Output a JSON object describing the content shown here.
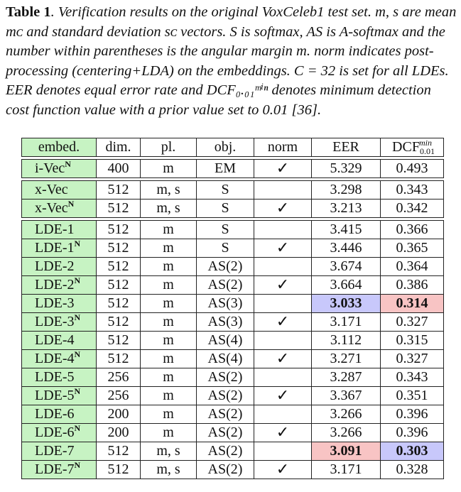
{
  "caption": {
    "label": "Table 1",
    "text": ". Verification results on the original VoxCeleb1 test set. m, s are mean mᴄ and standard deviation sᴄ vectors. S is softmax, AS is A-softmax and the number within parentheses is the angular margin m. norm indicates post-processing (centering+LDA) on the embeddings. C = 32 is set for all LDEs. EER denotes equal error rate and DCF₀.₀₁ᵐⁱⁿ denotes minimum detection cost function value with a prior value set to 0.01 [36]."
  },
  "headers": [
    "embed.",
    "dim.",
    "pl.",
    "obj.",
    "norm",
    "EER",
    "DCF"
  ],
  "dcf_sub": "0.01",
  "dcf_sup": "min",
  "check_symbol": "✓",
  "groups": [
    [
      {
        "name": "i-Vec",
        "sup": "N",
        "dim": "400",
        "pl": "m",
        "obj": "EM",
        "norm": true,
        "eer": "5.329",
        "dcf": "0.493"
      }
    ],
    [
      {
        "name": "x-Vec",
        "sup": "",
        "dim": "512",
        "pl": "m, s",
        "obj": "S",
        "norm": false,
        "eer": "3.298",
        "dcf": "0.343"
      },
      {
        "name": "x-Vec",
        "sup": "N",
        "dim": "512",
        "pl": "m, s",
        "obj": "S",
        "norm": true,
        "eer": "3.213",
        "dcf": "0.342"
      }
    ],
    [
      {
        "name": "LDE-1",
        "sup": "",
        "dim": "512",
        "pl": "m",
        "obj": "S",
        "norm": false,
        "eer": "3.415",
        "dcf": "0.366"
      },
      {
        "name": "LDE-1",
        "sup": "N",
        "dim": "512",
        "pl": "m",
        "obj": "S",
        "norm": true,
        "eer": "3.446",
        "dcf": "0.365"
      },
      {
        "name": "LDE-2",
        "sup": "",
        "dim": "512",
        "pl": "m",
        "obj": "AS(2)",
        "norm": false,
        "eer": "3.674",
        "dcf": "0.364"
      },
      {
        "name": "LDE-2",
        "sup": "N",
        "dim": "512",
        "pl": "m",
        "obj": "AS(2)",
        "norm": true,
        "eer": "3.664",
        "dcf": "0.386"
      },
      {
        "name": "LDE-3",
        "sup": "",
        "dim": "512",
        "pl": "m",
        "obj": "AS(3)",
        "norm": false,
        "eer": "3.033",
        "dcf": "0.314",
        "eer_hl": "blue",
        "dcf_hl": "red"
      },
      {
        "name": "LDE-3",
        "sup": "N",
        "dim": "512",
        "pl": "m",
        "obj": "AS(3)",
        "norm": true,
        "eer": "3.171",
        "dcf": "0.327"
      },
      {
        "name": "LDE-4",
        "sup": "",
        "dim": "512",
        "pl": "m",
        "obj": "AS(4)",
        "norm": false,
        "eer": "3.112",
        "dcf": "0.315"
      },
      {
        "name": "LDE-4",
        "sup": "N",
        "dim": "512",
        "pl": "m",
        "obj": "AS(4)",
        "norm": true,
        "eer": "3.271",
        "dcf": "0.327"
      },
      {
        "name": "LDE-5",
        "sup": "",
        "dim": "256",
        "pl": "m",
        "obj": "AS(2)",
        "norm": false,
        "eer": "3.287",
        "dcf": "0.343"
      },
      {
        "name": "LDE-5",
        "sup": "N",
        "dim": "256",
        "pl": "m",
        "obj": "AS(2)",
        "norm": true,
        "eer": "3.367",
        "dcf": "0.351"
      },
      {
        "name": "LDE-6",
        "sup": "",
        "dim": "200",
        "pl": "m",
        "obj": "AS(2)",
        "norm": false,
        "eer": "3.266",
        "dcf": "0.396"
      },
      {
        "name": "LDE-6",
        "sup": "N",
        "dim": "200",
        "pl": "m",
        "obj": "AS(2)",
        "norm": true,
        "eer": "3.266",
        "dcf": "0.396"
      },
      {
        "name": "LDE-7",
        "sup": "",
        "dim": "512",
        "pl": "m, s",
        "obj": "AS(2)",
        "norm": false,
        "eer": "3.091",
        "dcf": "0.303",
        "eer_hl": "red",
        "dcf_hl": "blue"
      },
      {
        "name": "LDE-7",
        "sup": "N",
        "dim": "512",
        "pl": "m, s",
        "obj": "AS(2)",
        "norm": true,
        "eer": "3.171",
        "dcf": "0.328"
      }
    ]
  ]
}
